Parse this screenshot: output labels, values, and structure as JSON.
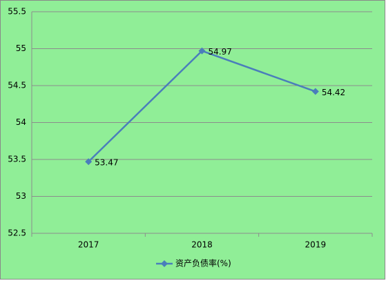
{
  "chart_data": {
    "type": "line",
    "categories": [
      "2017",
      "2018",
      "2019"
    ],
    "series": [
      {
        "name": "资产负债率(%)",
        "color": "#4a7ebb",
        "values": [
          53.47,
          54.97,
          54.42
        ]
      }
    ],
    "ylim": [
      52.5,
      55.5
    ],
    "yticks": [
      52.5,
      53,
      53.5,
      54,
      54.5,
      55,
      55.5
    ],
    "grid": true,
    "legend": "bottom",
    "background": "#90ee97"
  }
}
